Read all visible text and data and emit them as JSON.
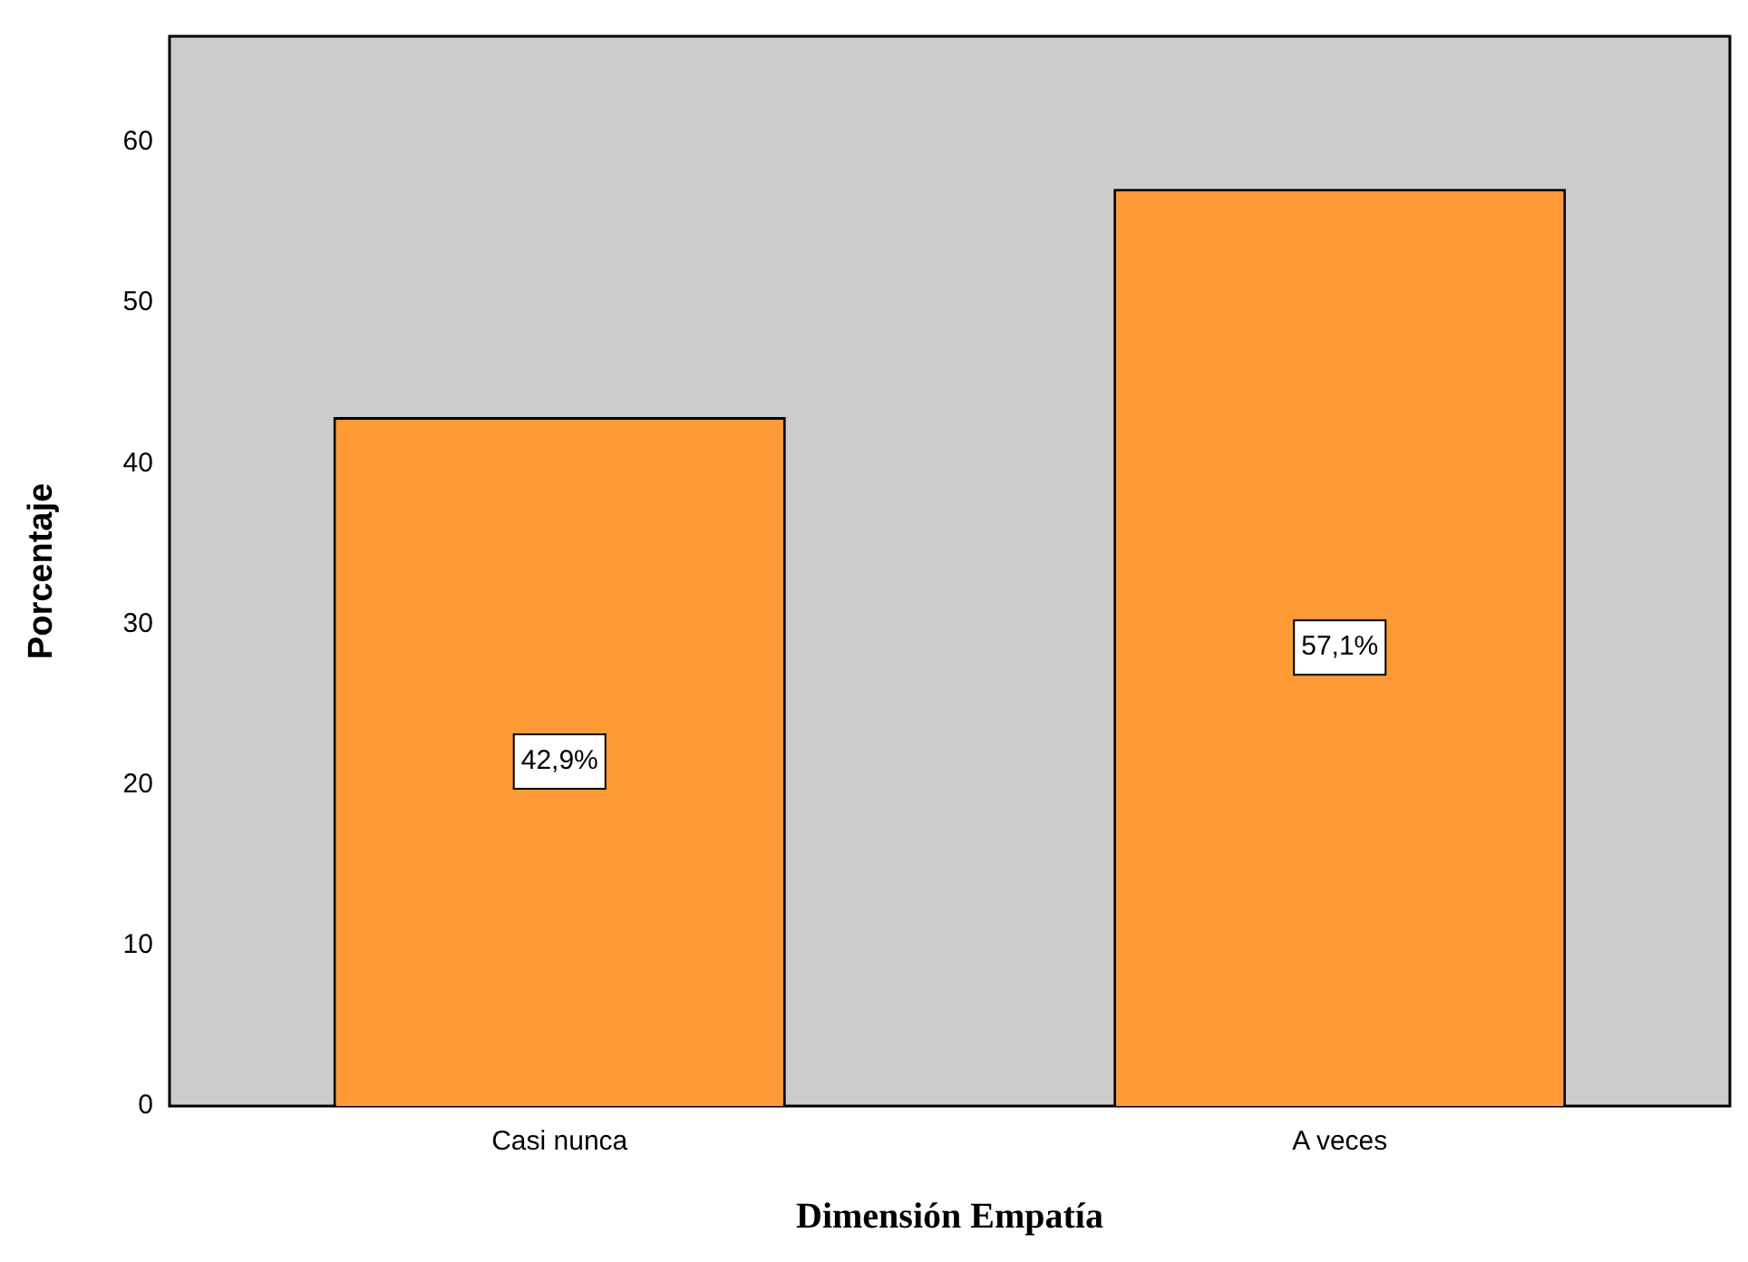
{
  "chart_data": {
    "type": "bar",
    "xlabel": "Dimensión Empatía",
    "ylabel": "Porcentaje",
    "categories": [
      "Casi nunca",
      "A veces"
    ],
    "values": [
      42.9,
      57.1
    ],
    "value_labels": [
      "42,9%",
      "57,1%"
    ],
    "color": "#fd9a35",
    "ylim": [
      0,
      66.6
    ],
    "yticks": [
      0,
      10,
      20,
      30,
      40,
      50,
      60
    ],
    "grid": false,
    "legend": false
  }
}
